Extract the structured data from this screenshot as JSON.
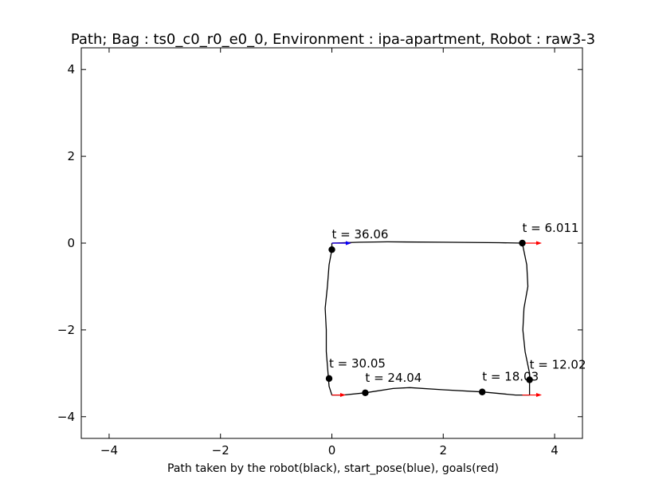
{
  "chart_data": {
    "type": "line",
    "title": "Path; Bag : ts0_c0_r0_e0_0, Environment : ipa-apartment, Robot : raw3-3",
    "xlabel": "Path taken by the robot(black), start_pose(blue), goals(red)",
    "ylabel": "",
    "xlim": [
      -4.5,
      4.5
    ],
    "ylim": [
      -4.5,
      4.5
    ],
    "xticks": [
      -4,
      -2,
      0,
      2,
      4
    ],
    "yticks": [
      -4,
      -2,
      0,
      2,
      4
    ],
    "xtick_labels": [
      "−4",
      "−2",
      "0",
      "2",
      "4"
    ],
    "ytick_labels": [
      "−4",
      "−2",
      "0",
      "2",
      "4"
    ],
    "grid": false,
    "colors": {
      "path": "#000000",
      "start_pose": "#0000ff",
      "goals": "#ff0000"
    },
    "series": [
      {
        "name": "path",
        "x": [
          0.0,
          0.5,
          1.0,
          2.0,
          3.0,
          3.42,
          3.5,
          3.52,
          3.45,
          3.43,
          3.47,
          3.55,
          3.55,
          3.3,
          2.7,
          2.0,
          1.4,
          1.1,
          0.6,
          0.2,
          0.0,
          -0.05,
          -0.1,
          -0.1,
          -0.12,
          -0.08,
          -0.05,
          0.0,
          0.0
        ],
        "y": [
          0.0,
          0.02,
          0.03,
          0.02,
          0.01,
          0.0,
          -0.5,
          -1.0,
          -1.5,
          -2.0,
          -2.5,
          -3.0,
          -3.5,
          -3.5,
          -3.43,
          -3.38,
          -3.33,
          -3.35,
          -3.45,
          -3.5,
          -3.5,
          -3.3,
          -2.5,
          -2.0,
          -1.5,
          -1.0,
          -0.5,
          -0.15,
          0.0
        ]
      }
    ],
    "start_pose": {
      "x": 0.0,
      "y": 0.0,
      "dx": 0.35,
      "dy": 0.0
    },
    "goals": [
      {
        "x": 0.0,
        "y": 0.0,
        "dx": 0.35,
        "dy": 0.0
      },
      {
        "x": 3.42,
        "y": 0.0,
        "dx": 0.35,
        "dy": 0.0
      },
      {
        "x": 3.42,
        "y": -3.5,
        "dx": 0.35,
        "dy": 0.0
      },
      {
        "x": 0.0,
        "y": -3.5,
        "dx": 0.25,
        "dy": 0.0
      }
    ],
    "markers": [
      {
        "x": 3.42,
        "y": 0.0,
        "label": "t = 6.011"
      },
      {
        "x": 3.55,
        "y": -3.15,
        "label": "t = 12.02"
      },
      {
        "x": 2.7,
        "y": -3.43,
        "label": "t = 18.03"
      },
      {
        "x": 0.6,
        "y": -3.45,
        "label": "t = 24.04"
      },
      {
        "x": -0.05,
        "y": -3.12,
        "label": "t = 30.05"
      },
      {
        "x": 0.0,
        "y": -0.15,
        "label": "t = 36.06"
      }
    ]
  }
}
